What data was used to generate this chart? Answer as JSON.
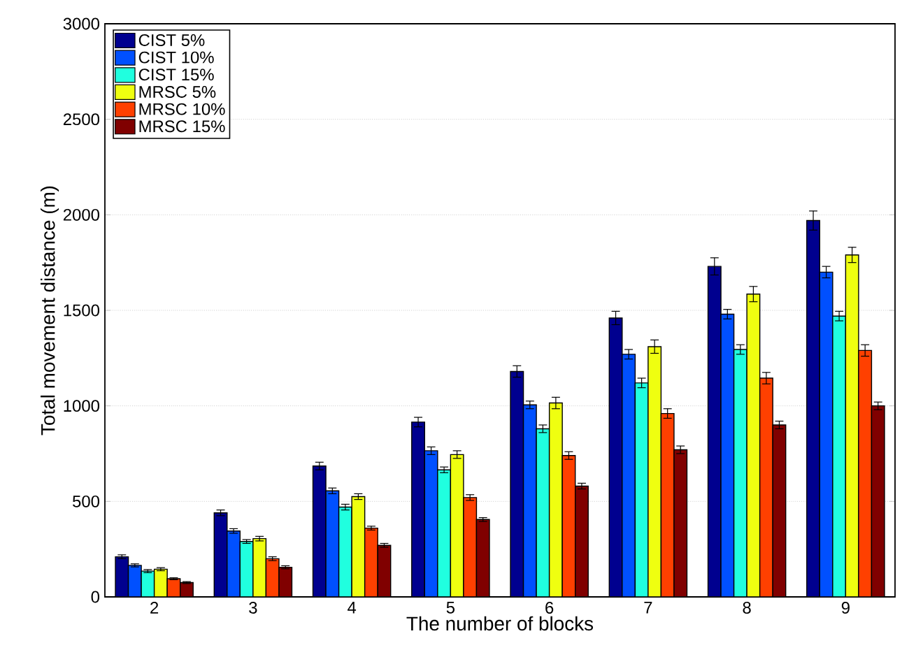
{
  "chart_data": {
    "type": "bar",
    "xlabel": "The number of blocks",
    "ylabel": "Total movement distance (m)",
    "categories": [
      "2",
      "3",
      "4",
      "5",
      "6",
      "7",
      "8",
      "9"
    ],
    "series": [
      {
        "name": "CIST 5%",
        "color": "#00008f",
        "values": [
          210,
          440,
          685,
          915,
          1180,
          1460,
          1730,
          1970
        ],
        "errors": [
          10,
          15,
          20,
          25,
          30,
          35,
          45,
          50
        ]
      },
      {
        "name": "CIST 10%",
        "color": "#0050ff",
        "values": [
          165,
          345,
          555,
          765,
          1005,
          1270,
          1480,
          1700
        ],
        "errors": [
          8,
          12,
          15,
          20,
          20,
          25,
          25,
          30
        ]
      },
      {
        "name": "CIST 15%",
        "color": "#20ffdf",
        "values": [
          135,
          290,
          470,
          665,
          880,
          1120,
          1295,
          1470
        ],
        "errors": [
          8,
          10,
          15,
          15,
          20,
          25,
          25,
          25
        ]
      },
      {
        "name": "MRSC 5%",
        "color": "#efff10",
        "values": [
          145,
          305,
          525,
          745,
          1015,
          1310,
          1585,
          1790
        ],
        "errors": [
          8,
          12,
          15,
          20,
          30,
          35,
          40,
          40
        ]
      },
      {
        "name": "MRSC 10%",
        "color": "#ff4000",
        "values": [
          95,
          200,
          360,
          520,
          740,
          960,
          1145,
          1290
        ],
        "errors": [
          5,
          10,
          10,
          15,
          20,
          25,
          30,
          30
        ]
      },
      {
        "name": "MRSC 15%",
        "color": "#800000",
        "values": [
          75,
          155,
          270,
          405,
          580,
          770,
          900,
          1000
        ],
        "errors": [
          5,
          8,
          10,
          10,
          15,
          20,
          20,
          20
        ]
      }
    ],
    "ylim": [
      0,
      3000
    ],
    "yticks": [
      0,
      500,
      1000,
      1500,
      2000,
      2500,
      3000
    ],
    "grid": "y",
    "legend": "top left"
  }
}
